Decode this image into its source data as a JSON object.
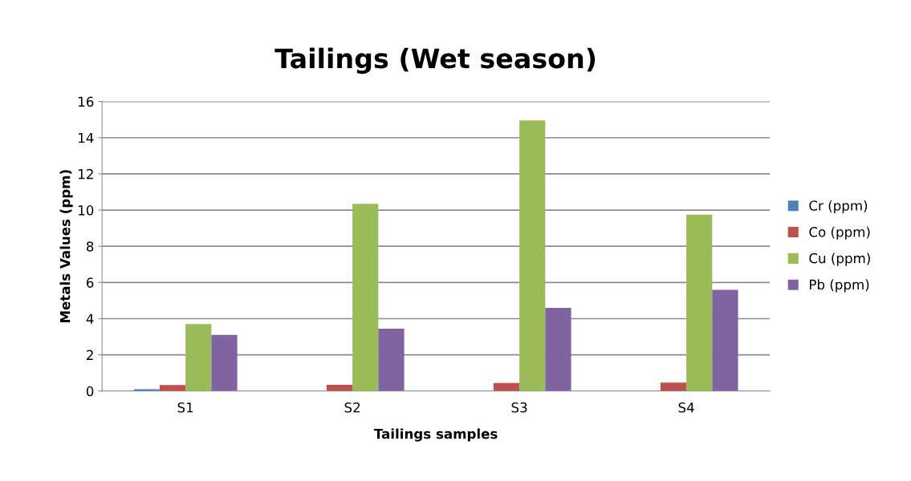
{
  "chart_data": {
    "type": "bar",
    "title": "Tailings (Wet season)",
    "xlabel": "Tailings samples",
    "ylabel": "Metals Values (ppm)",
    "categories": [
      "S1",
      "S2",
      "S3",
      "S4"
    ],
    "series": [
      {
        "name": "Cr (ppm)",
        "color": "#4f81bd",
        "values": [
          0.1,
          0,
          0,
          0
        ]
      },
      {
        "name": "Co (ppm)",
        "color": "#c0504d",
        "values": [
          0.33,
          0.35,
          0.44,
          0.47
        ]
      },
      {
        "name": "Cu (ppm)",
        "color": "#9bbb59",
        "values": [
          3.7,
          10.35,
          14.95,
          9.75
        ]
      },
      {
        "name": "Pb (ppm)",
        "color": "#8064a2",
        "values": [
          3.1,
          3.45,
          4.6,
          5.6
        ]
      }
    ],
    "ylim": [
      0,
      16
    ],
    "yticks": [
      0,
      2,
      4,
      6,
      8,
      10,
      12,
      14,
      16
    ],
    "grid": "y",
    "legend": "right"
  }
}
